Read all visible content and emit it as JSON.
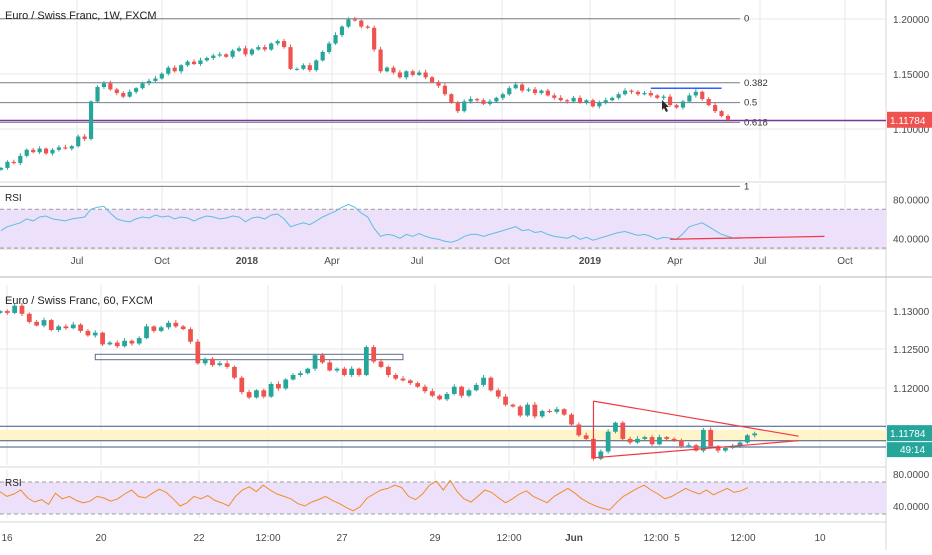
{
  "colors": {
    "up": "#26a69a",
    "down": "#ef5350",
    "grid": "#e8e8e8",
    "axis_text": "#4a4a4a",
    "fib_line": "#787b86",
    "rsi_line_top": "#5bc0de",
    "rsi_line_bottom": "#f28c28",
    "rsi_band": "#ede0fb",
    "price_badge": "#ef5350",
    "price_badge_bottom": "#26a69a",
    "trend_red": "#f23645",
    "trend_blue": "#2962ff",
    "support_band": "#fff3c4",
    "box_line": "#5d6b8a"
  },
  "icons": {
    "mouse_cursor": "cursor-arrow-icon"
  },
  "chart_data": [
    {
      "type": "candlestick",
      "title": "Euro / Swiss Franc, 1W, FXCM",
      "x_tick_labels": [
        "Jul",
        "Oct",
        "2018",
        "Apr",
        "Jul",
        "Oct",
        "2019",
        "Apr",
        "Jul",
        "Oct"
      ],
      "y_tick_labels": [
        "1.20000",
        "1.15000",
        "1.10000"
      ],
      "ylim": [
        1.068,
        1.217
      ],
      "current_price": "1.11784",
      "series": [
        {
          "name": "price",
          "close": [
            1.078,
            1.083,
            1.082,
            1.088,
            1.093,
            1.091,
            1.094,
            1.09,
            1.093,
            1.095,
            1.094,
            1.096,
            1.104,
            1.102,
            1.133,
            1.145,
            1.148,
            1.143,
            1.14,
            1.137,
            1.141,
            1.144,
            1.148,
            1.15,
            1.152,
            1.156,
            1.161,
            1.158,
            1.163,
            1.166,
            1.164,
            1.167,
            1.169,
            1.171,
            1.172,
            1.17,
            1.175,
            1.177,
            1.172,
            1.176,
            1.178,
            1.176,
            1.181,
            1.183,
            1.178,
            1.16,
            1.16,
            1.163,
            1.159,
            1.167,
            1.174,
            1.181,
            1.188,
            1.195,
            1.201,
            1.2,
            1.195,
            1.194,
            1.176,
            1.158,
            1.161,
            1.157,
            1.153,
            1.158,
            1.155,
            1.157,
            1.153,
            1.149,
            1.146,
            1.139,
            1.132,
            1.125,
            1.133,
            1.135,
            1.134,
            1.131,
            1.133,
            1.136,
            1.139,
            1.144,
            1.147,
            1.142,
            1.143,
            1.14,
            1.142,
            1.138,
            1.136,
            1.134,
            1.133,
            1.136,
            1.132,
            1.134,
            1.129,
            1.132,
            1.134,
            1.136,
            1.139,
            1.142,
            1.141,
            1.139,
            1.14,
            1.138,
            1.136,
            1.137,
            1.13,
            1.128,
            1.133,
            1.138,
            1.141,
            1.135,
            1.13,
            1.125,
            1.121,
            1.118
          ]
        }
      ],
      "fibonacci_levels": [
        {
          "label": "0",
          "price": 1.2015
        },
        {
          "label": "0.382",
          "price": 1.1485
        },
        {
          "label": "0.5",
          "price": 1.1321
        },
        {
          "label": "0.618",
          "price": 1.1157
        },
        {
          "label": "1",
          "price": 1.0627
        }
      ],
      "horizontal_lines": [
        1.117
      ],
      "resistance_line": {
        "from_index": 101,
        "to_index": 112,
        "price": 1.144
      },
      "rsi": {
        "label": "RSI",
        "y_tick_labels": [
          "80.0000",
          "40.0000"
        ],
        "ylim": [
          30,
          95
        ],
        "band": [
          30,
          70
        ],
        "values": [
          48,
          52,
          54,
          56,
          60,
          58,
          62,
          63,
          60,
          59,
          58,
          60,
          61,
          62,
          70,
          72,
          73,
          66,
          60,
          58,
          57,
          60,
          62,
          61,
          64,
          62,
          63,
          60,
          62,
          61,
          58,
          61,
          63,
          62,
          60,
          61,
          63,
          62,
          57,
          61,
          62,
          60,
          64,
          65,
          60,
          52,
          54,
          56,
          54,
          58,
          62,
          65,
          68,
          72,
          75,
          72,
          66,
          62,
          50,
          42,
          44,
          43,
          40,
          44,
          42,
          45,
          42,
          40,
          39,
          37,
          36,
          38,
          42,
          44,
          44,
          42,
          44,
          46,
          48,
          50,
          52,
          48,
          49,
          46,
          47,
          44,
          42,
          41,
          40,
          43,
          39,
          41,
          38,
          40,
          42,
          44,
          46,
          47,
          45,
          43,
          44,
          42,
          39,
          41,
          40,
          39,
          45,
          52,
          54,
          56,
          52,
          48,
          44,
          42,
          40,
          40
        ],
        "trendline": [
          [
            104,
            39
          ],
          [
            128,
            42
          ]
        ]
      }
    },
    {
      "type": "candlestick",
      "title": "Euro / Swiss Franc, 60, FXCM",
      "x_tick_labels": [
        "16",
        "20",
        "22",
        "12:00",
        "27",
        "29",
        "12:00",
        "Jun",
        "12:00",
        "5",
        "12:00",
        "10"
      ],
      "y_tick_labels": [
        "1.13000",
        "1.12500",
        "1.12000"
      ],
      "ylim": [
        1.1143,
        1.1343
      ],
      "current_price": "1.11784",
      "countdown": "49:14",
      "series": [
        {
          "name": "price",
          "close": [
            1.1314,
            1.1312,
            1.132,
            1.1311,
            1.1302,
            1.1298,
            1.1304,
            1.1293,
            1.1297,
            1.1295,
            1.1299,
            1.1292,
            1.1287,
            1.129,
            1.1277,
            1.1279,
            1.1275,
            1.1281,
            1.1278,
            1.1284,
            1.1297,
            1.1292,
            1.1296,
            1.1301,
            1.1297,
            1.1294,
            1.128,
            1.1256,
            1.1261,
            1.1254,
            1.1256,
            1.1252,
            1.124,
            1.1224,
            1.1218,
            1.1226,
            1.1219,
            1.1233,
            1.1228,
            1.1238,
            1.1243,
            1.1245,
            1.125,
            1.1265,
            1.1257,
            1.1248,
            1.125,
            1.1243,
            1.125,
            1.1243,
            1.1274,
            1.1258,
            1.1252,
            1.1243,
            1.1239,
            1.1237,
            1.1234,
            1.123,
            1.1225,
            1.122,
            1.1216,
            1.1222,
            1.123,
            1.122,
            1.1226,
            1.1232,
            1.124,
            1.1226,
            1.1219,
            1.121,
            1.1208,
            1.1198,
            1.121,
            1.1197,
            1.1203,
            1.1202,
            1.1205,
            1.1199,
            1.1188,
            1.1176,
            1.1172,
            1.115,
            1.1158,
            1.118,
            1.119,
            1.1172,
            1.1168,
            1.1172,
            1.1174,
            1.1166,
            1.1174,
            1.1172,
            1.117,
            1.1164,
            1.1165,
            1.1159,
            1.1182,
            1.1164,
            1.1159,
            1.1162,
            1.1164,
            1.1168,
            1.1176,
            1.1178
          ],
          "x_extent": 104
        }
      ],
      "triangle": {
        "upper": [
          [
            81,
            1.1214
          ],
          [
            109,
            1.1175
          ]
        ],
        "lower": [
          [
            81,
            1.1151
          ],
          [
            109,
            1.117
          ]
        ]
      },
      "support_zone": [
        1.117,
        1.1182
      ],
      "horizontal_lines": [
        1.1186,
        1.117,
        1.1163
      ],
      "consolidation_box": {
        "from_index": 13,
        "to_index": 55,
        "top": 1.1266,
        "bottom": 1.126
      },
      "rsi": {
        "label": "RSI",
        "y_tick_labels": [
          "80.0000",
          "40.0000"
        ],
        "ylim": [
          25,
          85
        ],
        "band": [
          30,
          70
        ],
        "values": [
          58,
          52,
          55,
          60,
          50,
          45,
          48,
          42,
          56,
          49,
          52,
          47,
          44,
          46,
          52,
          50,
          46,
          49,
          55,
          60,
          52,
          50,
          56,
          61,
          57,
          49,
          40,
          44,
          52,
          49,
          53,
          47,
          44,
          40,
          52,
          60,
          64,
          58,
          66,
          60,
          55,
          52,
          49,
          43,
          40,
          45,
          48,
          52,
          47,
          43,
          38,
          34,
          39,
          50,
          55,
          60,
          62,
          66,
          63,
          52,
          48,
          55,
          66,
          71,
          60,
          72,
          58,
          49,
          45,
          52,
          60,
          57,
          50,
          44,
          49,
          55,
          59,
          52,
          48,
          44,
          52,
          57,
          62,
          56,
          49,
          44,
          40,
          37,
          35,
          44,
          52,
          57,
          62,
          66,
          60,
          55,
          49,
          52,
          57,
          62,
          58,
          55,
          60,
          54,
          58,
          62,
          57,
          59,
          63
        ]
      }
    }
  ]
}
